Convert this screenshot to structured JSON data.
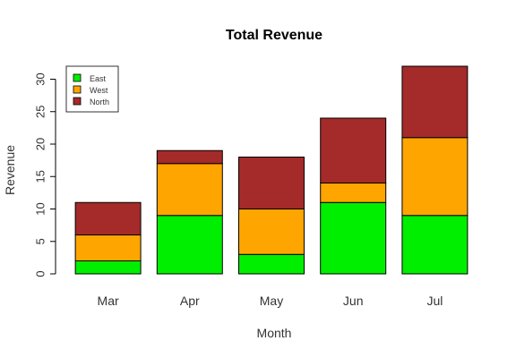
{
  "chart_data": {
    "type": "bar",
    "stacked": true,
    "title": "Total Revenue",
    "xlabel": "Month",
    "ylabel": "Revenue",
    "categories": [
      "Mar",
      "Apr",
      "May",
      "Jun",
      "Jul"
    ],
    "series": [
      {
        "name": "East",
        "values": [
          2,
          9,
          3,
          11,
          9
        ],
        "color": "#00ee00"
      },
      {
        "name": "West",
        "values": [
          4,
          8,
          7,
          3,
          12
        ],
        "color": "#ffa500"
      },
      {
        "name": "North",
        "values": [
          5,
          2,
          8,
          10,
          11
        ],
        "color": "#a52a2a"
      }
    ],
    "ylim": [
      0,
      32
    ],
    "yticks": [
      0,
      5,
      10,
      15,
      20,
      25,
      30
    ],
    "grid": false,
    "legend_position": "top-left"
  }
}
